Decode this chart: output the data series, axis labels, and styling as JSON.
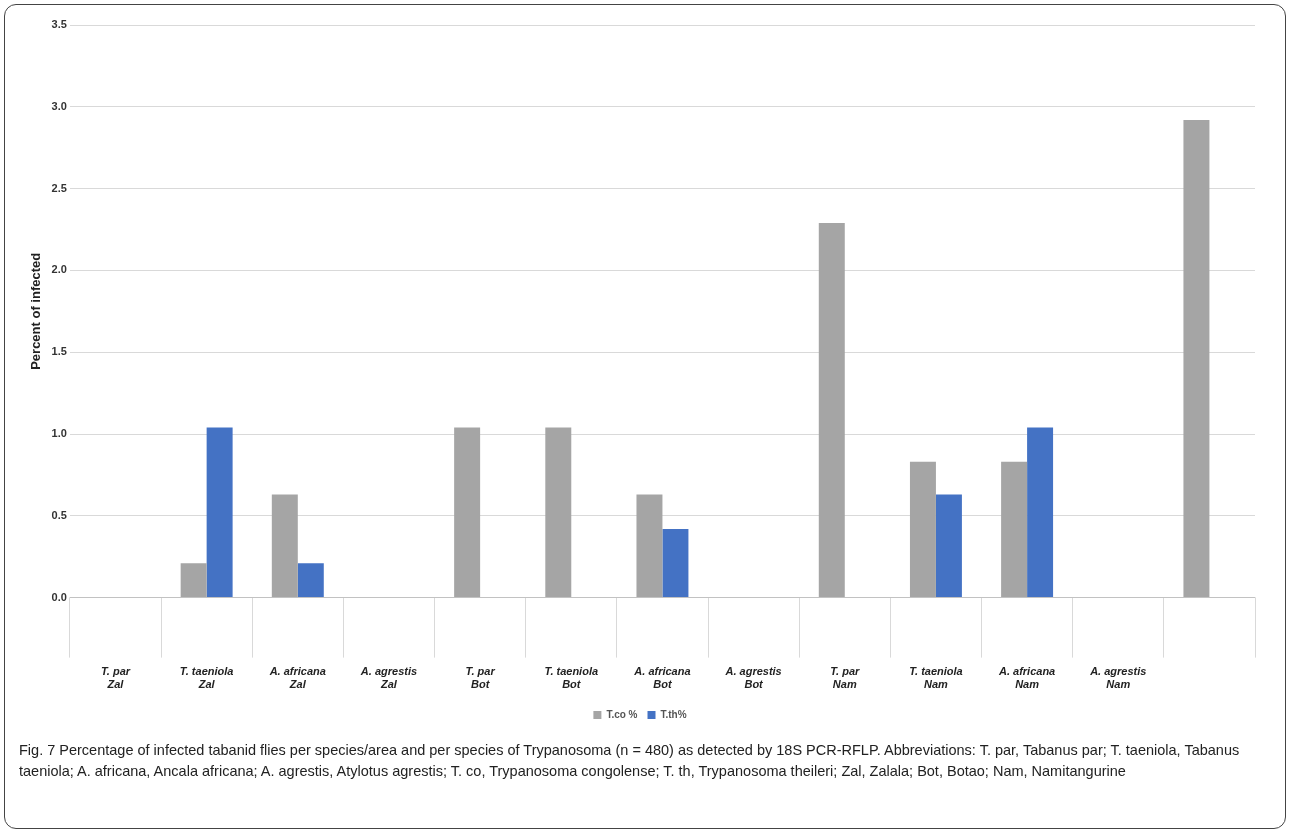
{
  "chart_data": {
    "type": "bar",
    "ylabel": "Percent of infected",
    "categories": [
      "T. par\nZal",
      "T. taeniola\nZal",
      "A. africana\nZal",
      "A. agrestis\nZal",
      "T. par\nBot",
      "T. taeniola\nBot",
      "A. africana\nBot",
      "A. agrestis\nBot",
      "T. par\nNam",
      "T. taeniola\nNam",
      "A. africana\nNam",
      "A. agrestis\nNam",
      null
    ],
    "series": [
      {
        "name": "T.co %",
        "color": "#a5a5a5",
        "values": [
          0,
          0.21,
          0.63,
          0,
          1.04,
          1.04,
          0.63,
          0,
          2.29,
          0.83,
          0.83,
          0,
          2.92
        ]
      },
      {
        "name": "T.th%",
        "color": "#4472c4",
        "values": [
          0,
          1.04,
          0.21,
          0,
          0,
          0,
          0.42,
          0,
          0,
          0.63,
          1.04,
          0,
          0
        ]
      }
    ],
    "ylim": [
      0,
      3.5
    ],
    "yticks": [
      {
        "value": 0,
        "label": "0.0"
      },
      {
        "value": 0.5,
        "label": "0.5"
      },
      {
        "value": 1,
        "label": "1.0"
      },
      {
        "value": 1.5,
        "label": "1.5"
      },
      {
        "value": 2,
        "label": "2.0"
      },
      {
        "value": 2.5,
        "label": "2.5"
      },
      {
        "value": 3,
        "label": "3.0"
      },
      {
        "value": 3.5,
        "label": "3.5"
      }
    ],
    "grid": "y",
    "legend": "bottom",
    "annotations": [
      "Fig. 7  Percentage of infected tabanid flies per species/area and per species of Trypanosoma (n = 480) as detected by 18S PCR-RFLP. Abbreviations: T. par, Tabanus par; T. taeniola, Tabanus taeniola; A. africana, Ancala africana; A. agrestis, Atylotus agrestis; T. co, Trypanosoma congolense; T. th, Trypanosoma theileri; Zal, Zalala; Bot, Botao; Nam, Namitangurine"
    ]
  }
}
